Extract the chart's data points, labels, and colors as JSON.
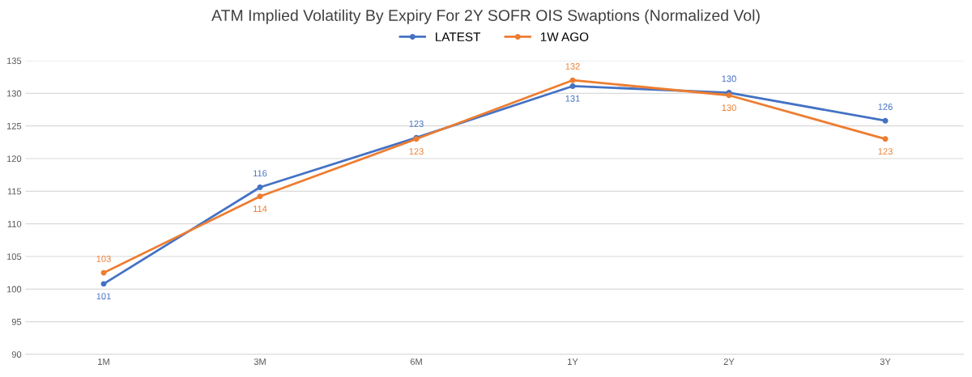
{
  "chart_data": {
    "type": "line",
    "title": "ATM Implied Volatility By Expiry For 2Y SOFR OIS Swaptions (Normalized Vol)",
    "categories": [
      "1M",
      "3M",
      "6M",
      "1Y",
      "2Y",
      "3Y"
    ],
    "series": [
      {
        "name": "LATEST",
        "color": "#4472c4",
        "values": [
          100.8,
          115.6,
          123.2,
          131.1,
          130.1,
          125.8
        ],
        "value_labels": [
          "101",
          "116",
          "123",
          "131",
          "130",
          "126"
        ]
      },
      {
        "name": "1W AGO",
        "color": "#ed7d31",
        "values": [
          102.5,
          114.2,
          123.0,
          132.0,
          129.7,
          123.0
        ],
        "value_labels": [
          "103",
          "114",
          "123",
          "132",
          "130",
          "123"
        ]
      }
    ],
    "ylim": [
      90,
      135
    ],
    "yticks": [
      90,
      95,
      100,
      105,
      110,
      115,
      120,
      125,
      130,
      135
    ],
    "grid": "y",
    "legend": "top",
    "marker": "circle",
    "line_style": "solid"
  }
}
